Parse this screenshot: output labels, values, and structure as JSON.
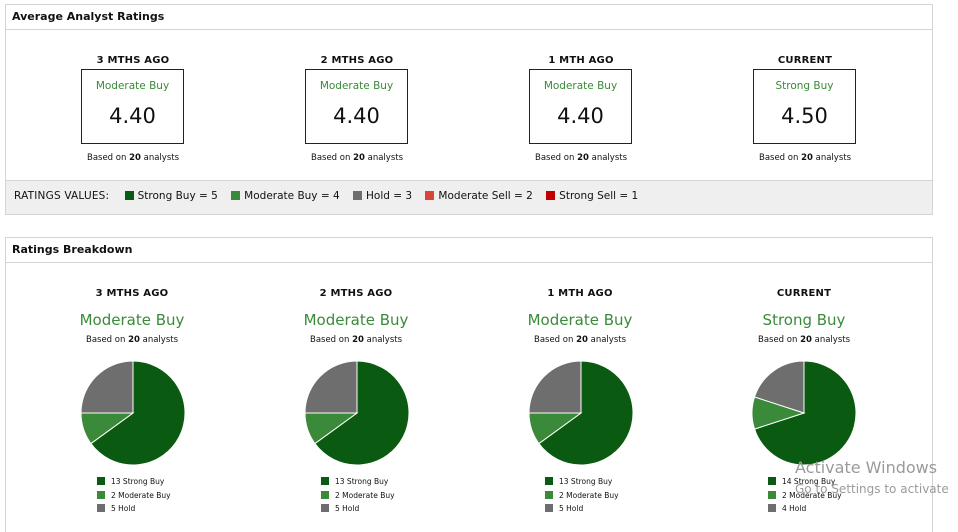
{
  "average_panel": {
    "title": "Average Analyst Ratings",
    "columns": [
      {
        "period": "3 MTHS AGO",
        "rating": "Moderate Buy",
        "score": "4.40",
        "based_prefix": "Based on",
        "analysts": "20",
        "based_suffix": "analysts",
        "rating_color": "#3a8a3a"
      },
      {
        "period": "2 MTHS AGO",
        "rating": "Moderate Buy",
        "score": "4.40",
        "based_prefix": "Based on",
        "analysts": "20",
        "based_suffix": "analysts",
        "rating_color": "#3a8a3a"
      },
      {
        "period": "1 MTH AGO",
        "rating": "Moderate Buy",
        "score": "4.40",
        "based_prefix": "Based on",
        "analysts": "20",
        "based_suffix": "analysts",
        "rating_color": "#3a8a3a"
      },
      {
        "period": "CURRENT",
        "rating": "Strong Buy",
        "score": "4.50",
        "based_prefix": "Based on",
        "analysts": "20",
        "based_suffix": "analysts",
        "rating_color": "#3a8a3a"
      }
    ],
    "legend": {
      "title": "RATINGS VALUES:",
      "items": [
        {
          "label": "Strong Buy = 5",
          "color": "#0b5a12"
        },
        {
          "label": "Moderate Buy = 4",
          "color": "#3a8a3a"
        },
        {
          "label": "Hold = 3",
          "color": "#6e6e6e"
        },
        {
          "label": "Moderate Sell = 2",
          "color": "#d9443a"
        },
        {
          "label": "Strong Sell = 1",
          "color": "#c00000"
        }
      ]
    }
  },
  "breakdown_panel": {
    "title": "Ratings Breakdown",
    "columns": [
      {
        "period": "3 MTHS AGO",
        "rating": "Moderate Buy",
        "based_prefix": "Based on",
        "analysts": "20",
        "based_suffix": "analysts",
        "legend": [
          "13 Strong Buy",
          "2 Moderate Buy",
          "5 Hold"
        ]
      },
      {
        "period": "2 MTHS AGO",
        "rating": "Moderate Buy",
        "based_prefix": "Based on",
        "analysts": "20",
        "based_suffix": "analysts",
        "legend": [
          "13 Strong Buy",
          "2 Moderate Buy",
          "5 Hold"
        ]
      },
      {
        "period": "1 MTH AGO",
        "rating": "Moderate Buy",
        "based_prefix": "Based on",
        "analysts": "20",
        "based_suffix": "analysts",
        "legend": [
          "13 Strong Buy",
          "2 Moderate Buy",
          "5 Hold"
        ]
      },
      {
        "period": "CURRENT",
        "rating": "Strong Buy",
        "based_prefix": "Based on",
        "analysts": "20",
        "based_suffix": "analysts",
        "legend": [
          "14 Strong Buy",
          "2 Moderate Buy",
          "4 Hold"
        ]
      }
    ],
    "colors": {
      "strong_buy": "#0b5a12",
      "moderate_buy": "#3a8a3a",
      "hold": "#6e6e6e"
    }
  },
  "chart_data": [
    {
      "type": "pie",
      "categories": [
        "Strong Buy",
        "Moderate Buy",
        "Hold"
      ],
      "values": [
        13,
        2,
        5
      ]
    },
    {
      "type": "pie",
      "categories": [
        "Strong Buy",
        "Moderate Buy",
        "Hold"
      ],
      "values": [
        13,
        2,
        5
      ]
    },
    {
      "type": "pie",
      "categories": [
        "Strong Buy",
        "Moderate Buy",
        "Hold"
      ],
      "values": [
        13,
        2,
        5
      ]
    },
    {
      "type": "pie",
      "categories": [
        "Strong Buy",
        "Moderate Buy",
        "Hold"
      ],
      "values": [
        14,
        2,
        4
      ]
    }
  ],
  "watermark": {
    "line1": "Activate Windows",
    "line2": "Go to Settings to activate"
  }
}
